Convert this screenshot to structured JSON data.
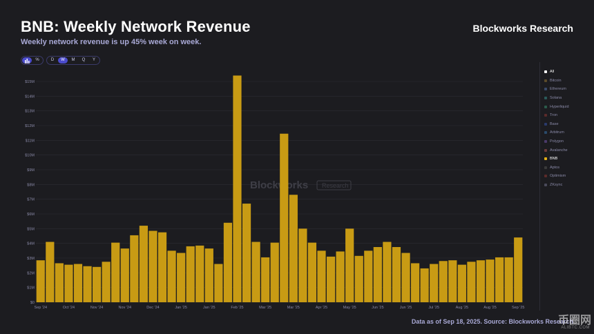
{
  "header": {
    "title": "BNB: Weekly Network Revenue",
    "subtitle": "Weekly network revenue is up 45% week on week.",
    "brand": "Blockworks Research"
  },
  "controls": {
    "chart_types": [
      {
        "icon": "bar-chart-icon",
        "active": true
      },
      {
        "icon": "percent-icon",
        "active": false
      }
    ],
    "periods": [
      {
        "label": "D",
        "active": false
      },
      {
        "label": "W",
        "active": true
      },
      {
        "label": "M",
        "active": false
      },
      {
        "label": "Q",
        "active": false
      },
      {
        "label": "Y",
        "active": false
      }
    ]
  },
  "legend": [
    {
      "label": "All",
      "color": "#ffffff",
      "active": true
    },
    {
      "label": "Bitcoin",
      "color": "#5a4a2a",
      "active": false
    },
    {
      "label": "Ethereum",
      "color": "#3a4a6a",
      "active": false
    },
    {
      "label": "Solana",
      "color": "#2a5a5a",
      "active": false
    },
    {
      "label": "Hyperliquid",
      "color": "#2a5a4a",
      "active": false
    },
    {
      "label": "Tron",
      "color": "#5a2a2a",
      "active": false
    },
    {
      "label": "Base",
      "color": "#2a3a6a",
      "active": false
    },
    {
      "label": "Arbitrum",
      "color": "#2a4a6a",
      "active": false
    },
    {
      "label": "Polygon",
      "color": "#4a3a6a",
      "active": false
    },
    {
      "label": "Avalanche",
      "color": "#6a3a3a",
      "active": false
    },
    {
      "label": "BNB",
      "color": "#e3b017",
      "active": true
    },
    {
      "label": "Aptos",
      "color": "#3a3a3a",
      "active": false
    },
    {
      "label": "Optimism",
      "color": "#5a2a2a",
      "active": false
    },
    {
      "label": "ZKsync",
      "color": "#4a4a5a",
      "active": false
    }
  ],
  "footer": "Data as of Sep 18, 2025. Source: Blockworks Research",
  "watermark": {
    "chart_main": "Blockworks",
    "chart_sub": "Research",
    "corner": "币圈网",
    "corner_sub": "ALIBTC.COM"
  },
  "chart_data": {
    "type": "bar",
    "title": "BNB: Weekly Network Revenue",
    "bar_color": "#c89b14",
    "ylim": [
      0,
      15
    ],
    "y_unit": "$M",
    "y_ticks": [
      "$0",
      "$1M",
      "$2M",
      "$3M",
      "$4M",
      "$5M",
      "$6M",
      "$7M",
      "$8M",
      "$9M",
      "$10M",
      "$11M",
      "$12M",
      "$13M",
      "$14M",
      "$15M"
    ],
    "x_tick_labels": [
      {
        "label": "Sep '24",
        "index": 0
      },
      {
        "label": "Oct '24",
        "index": 3
      },
      {
        "label": "Nov '24",
        "index": 6
      },
      {
        "label": "Nov '24",
        "index": 9
      },
      {
        "label": "Dec '24",
        "index": 12
      },
      {
        "label": "Jan '25",
        "index": 15
      },
      {
        "label": "Jan '25",
        "index": 18
      },
      {
        "label": "Feb '25",
        "index": 21
      },
      {
        "label": "Mar '25",
        "index": 24
      },
      {
        "label": "Mar '25",
        "index": 27
      },
      {
        "label": "Apr '25",
        "index": 30
      },
      {
        "label": "May '25",
        "index": 33
      },
      {
        "label": "Jun '25",
        "index": 36
      },
      {
        "label": "Jun '25",
        "index": 39
      },
      {
        "label": "Jul '25",
        "index": 42
      },
      {
        "label": "Aug '25",
        "index": 45
      },
      {
        "label": "Aug '25",
        "index": 48
      },
      {
        "label": "Sep '25",
        "index": 51
      }
    ],
    "series": [
      {
        "values": [
          2.85,
          4.1,
          2.65,
          2.55,
          2.6,
          2.45,
          2.4,
          2.75,
          4.05,
          3.65,
          4.55,
          5.2,
          4.85,
          4.75,
          3.5,
          3.35,
          3.8,
          3.85,
          3.65,
          2.6,
          5.4,
          15.4,
          6.7,
          4.1,
          3.05,
          4.05,
          11.45,
          7.3,
          5.0,
          4.05,
          3.5,
          3.1,
          3.45,
          5.0,
          3.15,
          3.5,
          3.75,
          4.1,
          3.75,
          3.35,
          2.65,
          2.3,
          2.6,
          2.8,
          2.85,
          2.55,
          2.75,
          2.85,
          2.9,
          3.05,
          3.05,
          4.4
        ]
      }
    ],
    "grid": true,
    "legend_position": "right"
  }
}
